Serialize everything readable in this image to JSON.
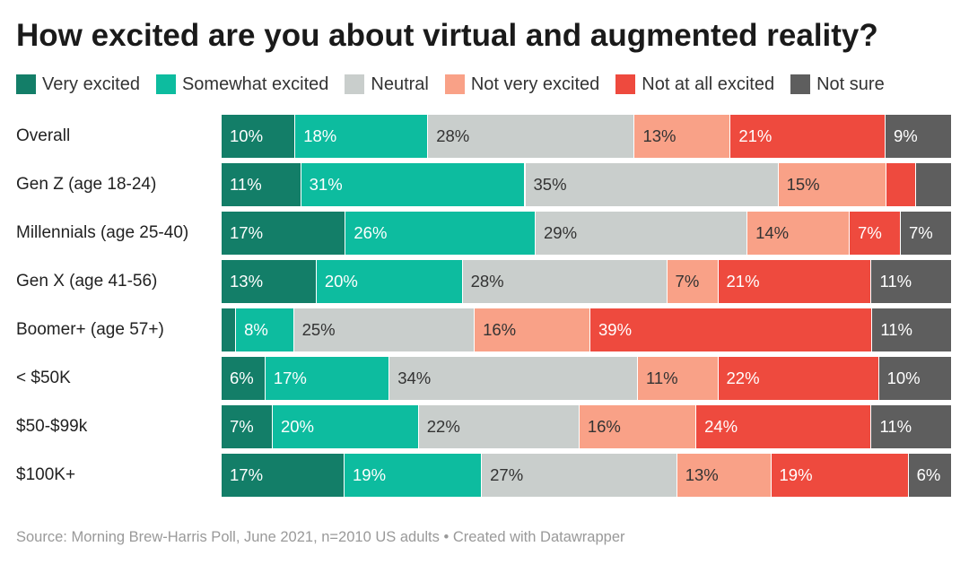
{
  "chart_data": {
    "type": "bar",
    "orientation": "horizontal",
    "stacked": true,
    "normalized": true,
    "title": "How excited are you about virtual and augmented reality?",
    "legend_position": "top",
    "grid": false,
    "categories": [
      "Overall",
      "Gen Z (age 18-24)",
      "Millennials (age 25-40)",
      "Gen X (age 41-56)",
      "Boomer+ (age 57+)",
      "< $50K",
      "$50-$99k",
      "$100K+"
    ],
    "series": [
      {
        "name": "Very excited",
        "color": "#137e68",
        "text_color": "#ffffff",
        "values": [
          10,
          11,
          17,
          13,
          2,
          6,
          7,
          17
        ],
        "labels": [
          "10%",
          "11%",
          "17%",
          "13%",
          "",
          "6%",
          "7%",
          "17%"
        ]
      },
      {
        "name": "Somewhat excited",
        "color": "#0dbc9f",
        "text_color": "#ffffff",
        "values": [
          18,
          31,
          26,
          20,
          8,
          17,
          20,
          19
        ],
        "labels": [
          "18%",
          "31%",
          "26%",
          "20%",
          "8%",
          "17%",
          "20%",
          "19%"
        ]
      },
      {
        "name": "Neutral",
        "color": "#c9cecc",
        "text_color": "#333333",
        "values": [
          28,
          35,
          29,
          28,
          25,
          34,
          22,
          27
        ],
        "labels": [
          "28%",
          "35%",
          "29%",
          "28%",
          "25%",
          "34%",
          "22%",
          "27%"
        ]
      },
      {
        "name": "Not very excited",
        "color": "#f9a187",
        "text_color": "#333333",
        "values": [
          13,
          15,
          14,
          7,
          16,
          11,
          16,
          13
        ],
        "labels": [
          "13%",
          "15%",
          "14%",
          "7%",
          "16%",
          "11%",
          "16%",
          "13%"
        ]
      },
      {
        "name": "Not at all excited",
        "color": "#ee4a3e",
        "text_color": "#ffffff",
        "values": [
          21,
          4,
          7,
          21,
          39,
          22,
          24,
          19
        ],
        "labels": [
          "21%",
          "",
          "7%",
          "21%",
          "39%",
          "22%",
          "24%",
          "19%"
        ]
      },
      {
        "name": "Not sure",
        "color": "#5e5e5e",
        "text_color": "#ffffff",
        "values": [
          9,
          5,
          7,
          11,
          11,
          10,
          11,
          6
        ],
        "labels": [
          "9%",
          "",
          "7%",
          "11%",
          "11%",
          "10%",
          "11%",
          "6%"
        ]
      }
    ]
  },
  "footer": {
    "source": "Source: Morning Brew-Harris Poll, June 2021, n=2010 US adults • Created with Datawrapper"
  }
}
